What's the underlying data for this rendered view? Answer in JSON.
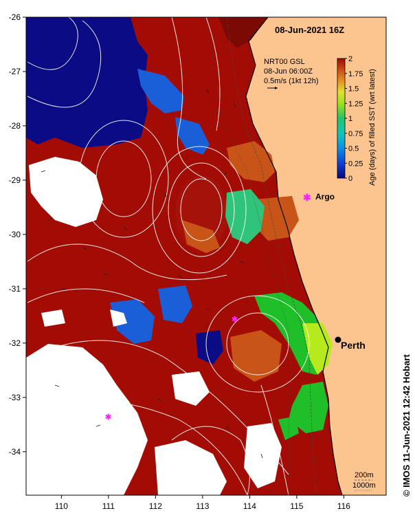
{
  "title": "08-Jun-2021 16Z",
  "current_info": {
    "product": "NRT00 GSL",
    "time": "08-Jun 06:00Z",
    "scale": "0.5m/s (1kt 12h)"
  },
  "colorbar": {
    "label": "Age (days) of filled SST (wrt latest)",
    "ticks": [
      "0",
      "0.25",
      "0.5",
      "0.75",
      "1",
      "1.25",
      "1.5",
      "1.75",
      "2"
    ],
    "colors": [
      "#08087a",
      "#0a3fd6",
      "#0b8fe6",
      "#10c4c0",
      "#20c66a",
      "#98e21a",
      "#e2e030",
      "#e58a1f",
      "#c94a14",
      "#9e0a04"
    ]
  },
  "places": {
    "argo": "Argo",
    "perth": "Perth"
  },
  "isobaths": [
    "200m",
    "1000m"
  ],
  "credit": "© IMOS 11-Jun-2021 12:42 Hobart",
  "chart_data": {
    "type": "heatmap",
    "title": "08-Jun-2021 16Z",
    "xlabel": "",
    "ylabel": "",
    "x_ticks": [
      "110",
      "111",
      "112",
      "113",
      "114",
      "115",
      "116"
    ],
    "y_ticks": [
      "-26",
      "-27",
      "-28",
      "-29",
      "-30",
      "-31",
      "-32",
      "-33",
      "-34"
    ],
    "xlim": [
      109.25,
      116.9
    ],
    "ylim": [
      -34.8,
      -26
    ],
    "colorbar_range": [
      0,
      2
    ],
    "markers": [
      {
        "name": "Argo",
        "lon": 115.1,
        "lat": -29.35
      },
      {
        "name": "Perth",
        "lon": 115.85,
        "lat": -31.95
      },
      {
        "name": "",
        "lon": 113.65,
        "lat": -31.55
      },
      {
        "name": "",
        "lon": 111.0,
        "lat": -33.35
      }
    ]
  }
}
